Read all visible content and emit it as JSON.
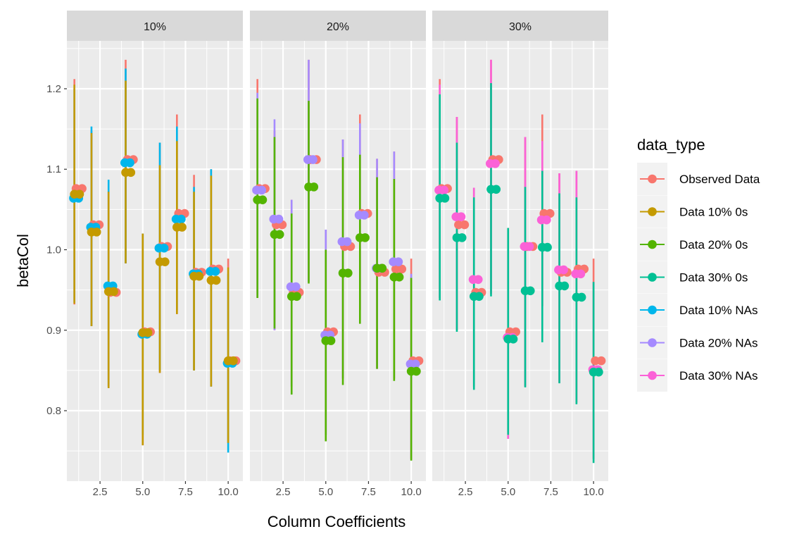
{
  "chart_data": {
    "type": "scatter",
    "subtype": "pointrange, faceted",
    "xlabel": "Column Coefficients",
    "ylabel": "betaCol",
    "xlim": [
      0.56,
      10.86
    ],
    "ylim": [
      0.7125,
      1.2595
    ],
    "xticks": [
      "2.5",
      "5.0",
      "7.5",
      "10.0"
    ],
    "xtick_values": [
      2.5,
      5.0,
      7.5,
      10.0
    ],
    "yticks": [
      "0.8",
      "0.9",
      "1.0",
      "1.1",
      "1.2"
    ],
    "ytick_values": [
      0.8,
      0.9,
      1.0,
      1.1,
      1.2
    ],
    "grid": true,
    "legend": {
      "title": "data_type",
      "placement": "right"
    },
    "x": [
      1,
      2,
      3,
      4,
      5,
      6,
      7,
      8,
      9,
      10
    ],
    "series_defs": [
      {
        "name": "Observed Data",
        "color": "#F8766D"
      },
      {
        "name": "Data 10% 0s",
        "color": "#C49A00"
      },
      {
        "name": "Data 20% 0s",
        "color": "#53B400"
      },
      {
        "name": "Data 30% 0s",
        "color": "#00C094"
      },
      {
        "name": "Data 10% NAs",
        "color": "#00B6EB"
      },
      {
        "name": "Data 20% NAs",
        "color": "#A58AFF"
      },
      {
        "name": "Data 30% NAs",
        "color": "#FB61D7"
      }
    ],
    "panels": [
      {
        "label": "10%",
        "series": [
          {
            "name": "Observed Data",
            "values": [
              1.076,
              1.031,
              0.947,
              1.112,
              0.898,
              1.004,
              1.045,
              0.972,
              0.976,
              0.862
            ],
            "upper": [
              1.212,
              1.148,
              1.072,
              1.236,
              1.02,
              1.133,
              1.168,
              1.093,
              1.1,
              0.989
            ],
            "lower": [
              0.932,
              0.905,
              0.83,
              0.983,
              0.757,
              0.847,
              0.92,
              0.85,
              0.83,
              0.76
            ]
          },
          {
            "name": "Data 10% NAs",
            "values": [
              1.064,
              1.028,
              0.955,
              1.108,
              0.895,
              1.002,
              1.038,
              0.97,
              0.973,
              0.859
            ],
            "upper": [
              1.2,
              1.153,
              1.087,
              1.225,
              1.02,
              1.133,
              1.153,
              1.078,
              1.1,
              0.97
            ],
            "lower": [
              0.935,
              0.905,
              0.83,
              0.983,
              0.77,
              0.85,
              0.925,
              0.85,
              0.83,
              0.748
            ]
          },
          {
            "name": "Data 10% 0s",
            "values": [
              1.069,
              1.022,
              0.948,
              1.096,
              0.897,
              0.985,
              1.028,
              0.967,
              0.962,
              0.862
            ],
            "upper": [
              1.205,
              1.145,
              1.072,
              1.21,
              1.02,
              1.105,
              1.135,
              1.072,
              1.092,
              0.978
            ],
            "lower": [
              0.933,
              0.905,
              0.828,
              0.983,
              0.757,
              0.847,
              0.92,
              0.85,
              0.83,
              0.76
            ]
          }
        ]
      },
      {
        "label": "20%",
        "series": [
          {
            "name": "Observed Data",
            "values": [
              1.076,
              1.031,
              0.947,
              1.112,
              0.898,
              1.004,
              1.045,
              0.972,
              0.976,
              0.862
            ],
            "upper": [
              1.212,
              1.148,
              1.062,
              1.236,
              1.025,
              1.137,
              1.168,
              1.113,
              1.122,
              0.989
            ],
            "lower": [
              0.94,
              0.9,
              0.83,
              0.96,
              0.77,
              0.84,
              0.925,
              0.852,
              0.84,
              0.74
            ]
          },
          {
            "name": "Data 20% NAs",
            "values": [
              1.074,
              1.038,
              0.954,
              1.112,
              0.894,
              1.01,
              1.043,
              0.977,
              0.985,
              0.858
            ],
            "upper": [
              1.195,
              1.162,
              1.062,
              1.236,
              1.025,
              1.137,
              1.157,
              1.113,
              1.122,
              0.97
            ],
            "lower": [
              0.94,
              0.9,
              0.83,
              0.96,
              0.77,
              0.84,
              0.925,
              0.852,
              0.84,
              0.74
            ]
          },
          {
            "name": "Data 20% 0s",
            "values": [
              1.062,
              1.019,
              0.942,
              1.078,
              0.887,
              0.971,
              1.015,
              0.977,
              0.966,
              0.849
            ],
            "upper": [
              1.188,
              1.14,
              1.045,
              1.185,
              1.0,
              1.115,
              1.118,
              1.09,
              1.088,
              0.965
            ],
            "lower": [
              0.94,
              0.902,
              0.82,
              0.958,
              0.762,
              0.832,
              0.908,
              0.852,
              0.837,
              0.738
            ]
          }
        ]
      },
      {
        "label": "30%",
        "series": [
          {
            "name": "Observed Data",
            "values": [
              1.076,
              1.031,
              0.947,
              1.112,
              0.898,
              1.004,
              1.045,
              0.972,
              0.976,
              0.862
            ],
            "upper": [
              1.212,
              1.165,
              1.077,
              1.236,
              1.027,
              1.14,
              1.168,
              1.095,
              1.098,
              0.989
            ],
            "lower": [
              0.94,
              0.9,
              0.83,
              0.945,
              0.765,
              0.83,
              0.93,
              0.835,
              0.81,
              0.74
            ]
          },
          {
            "name": "Data 30% NAs",
            "values": [
              1.074,
              1.041,
              0.963,
              1.107,
              0.891,
              1.004,
              1.037,
              0.975,
              0.97,
              0.851
            ],
            "upper": [
              1.205,
              1.165,
              1.077,
              1.236,
              1.0,
              1.14,
              1.135,
              1.095,
              1.098,
              0.96
            ],
            "lower": [
              0.94,
              0.9,
              0.83,
              0.945,
              0.765,
              0.83,
              0.93,
              0.835,
              0.81,
              0.74
            ]
          },
          {
            "name": "Data 30% 0s",
            "values": [
              1.064,
              1.015,
              0.942,
              1.075,
              0.889,
              0.949,
              1.003,
              0.955,
              0.941,
              0.848
            ],
            "upper": [
              1.193,
              1.133,
              1.065,
              1.207,
              1.027,
              1.078,
              1.098,
              1.07,
              1.065,
              0.96
            ],
            "lower": [
              0.937,
              0.898,
              0.826,
              0.942,
              0.77,
              0.829,
              0.885,
              0.834,
              0.808,
              0.735
            ]
          }
        ]
      }
    ]
  }
}
